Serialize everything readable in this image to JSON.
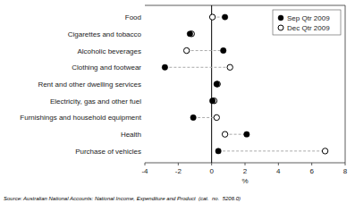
{
  "chart_data": {
    "type": "dumbbell",
    "orientation": "horizontal",
    "categories": [
      "Food",
      "Cigarettes and tobacco",
      "Alcoholic beverages",
      "Clothing and footwear",
      "Rent and other dwelling services",
      "Electricity, gas and other fuel",
      "Furnishings and household equipment",
      "Health",
      "Purchase of vehicles"
    ],
    "series": [
      {
        "name": "Sep Qtr 2009",
        "color": "black",
        "marker": "filled-circle",
        "values": [
          0.8,
          -1.3,
          0.7,
          -2.8,
          0.3,
          0.05,
          -1.1,
          2.1,
          0.4
        ]
      },
      {
        "name": "Dec Qtr 2009",
        "color": "black",
        "marker": "open-circle",
        "values": [
          0.05,
          -1.2,
          -1.5,
          1.1,
          0.35,
          0.15,
          0.3,
          0.8,
          6.8
        ]
      }
    ],
    "x_label": "%",
    "xlim": [
      -4,
      8
    ],
    "xticks": [
      -4,
      -2,
      0,
      2,
      4,
      6,
      8
    ],
    "legend": "upper right",
    "grid": false,
    "annotations": [
      "Source: Australian National Accounts: National Income, Expenditure and Product  (cat.  no.  5206.0)"
    ]
  }
}
